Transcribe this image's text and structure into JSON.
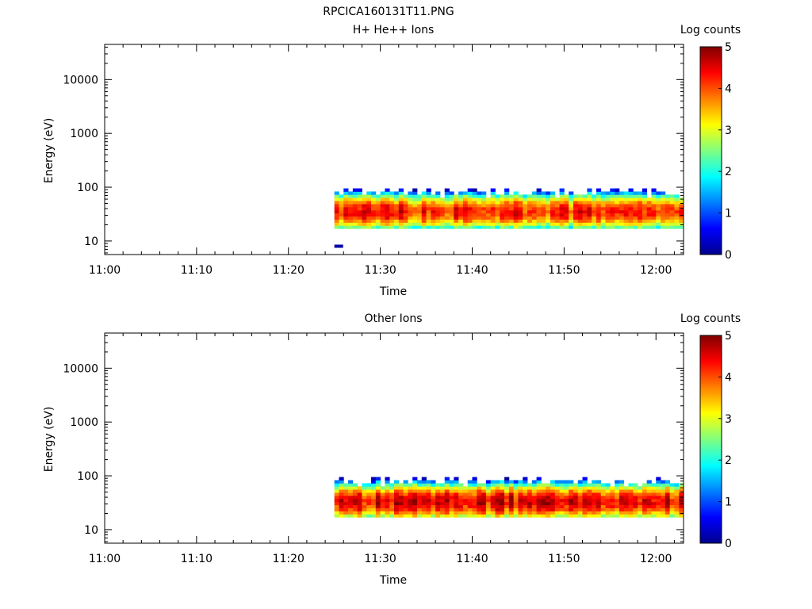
{
  "figure_title": "RPCICA160131T11.PNG",
  "colorbar_label": "Log counts",
  "colorbar_ticks": [
    "0",
    "1",
    "2",
    "3",
    "4",
    "5"
  ],
  "chart_data": [
    {
      "type": "heatmap",
      "title": "H+ He++ Ions",
      "xlabel": "Time",
      "ylabel": "Energy (eV)",
      "x_ticks": [
        "11:00",
        "11:10",
        "11:20",
        "11:30",
        "11:40",
        "11:50",
        "12:00"
      ],
      "y_ticks": [
        "10",
        "100",
        "1000",
        "10000"
      ],
      "yscale": "log",
      "ylim": [
        5.6,
        45000
      ],
      "xlim": [
        "11:00",
        "12:03"
      ],
      "color_scale": "jet",
      "color_range": [
        0,
        5
      ],
      "data_start": "11:25",
      "data_end": "12:03",
      "energy_range_eV": [
        17,
        95
      ],
      "peak_energy_eV": 35,
      "peak_log_counts": 4.2,
      "isolated_points": [
        {
          "time": "11:25",
          "energy_eV": 8,
          "log_counts": 0.2
        }
      ]
    },
    {
      "type": "heatmap",
      "title": "Other Ions",
      "xlabel": "Time",
      "ylabel": "Energy (eV)",
      "x_ticks": [
        "11:00",
        "11:10",
        "11:20",
        "11:30",
        "11:40",
        "11:50",
        "12:00"
      ],
      "y_ticks": [
        "10",
        "100",
        "1000",
        "10000"
      ],
      "yscale": "log",
      "ylim": [
        5.6,
        45000
      ],
      "xlim": [
        "11:00",
        "12:03"
      ],
      "color_scale": "jet",
      "color_range": [
        0,
        5
      ],
      "data_start": "11:25",
      "data_end": "12:03",
      "energy_range_eV": [
        17,
        95
      ],
      "peak_energy_eV": 33,
      "peak_log_counts": 4.5,
      "isolated_points": []
    }
  ]
}
